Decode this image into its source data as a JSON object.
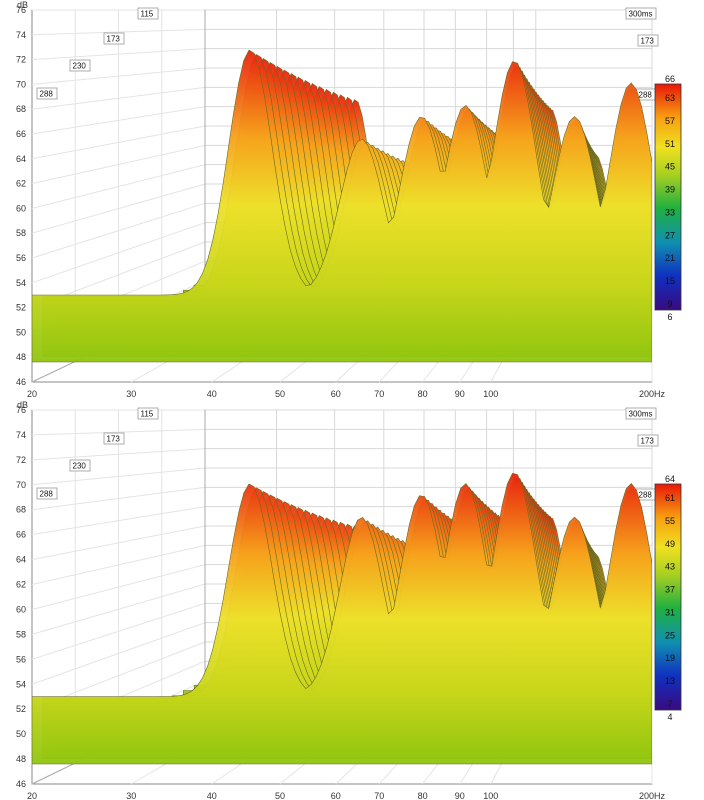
{
  "chart_data": [
    {
      "type": "waterfall",
      "y_unit": "dB",
      "x_unit": "Hz",
      "zlim_label": "300ms",
      "xlim": [
        20,
        200
      ],
      "ylim": [
        46,
        76
      ],
      "y_ticks": [
        "76",
        "74",
        "72",
        "70",
        "68",
        "66",
        "64",
        "62",
        "60",
        "58",
        "56",
        "54",
        "52",
        "50",
        "48",
        "46"
      ],
      "x_ticks": [
        "20",
        "30",
        "40",
        "50",
        "60",
        "70",
        "80",
        "90",
        "100",
        "200Hz"
      ],
      "time_labels": [
        "115",
        "173",
        "230",
        "288",
        "300ms",
        "173",
        "288"
      ],
      "colorbar": [
        "66",
        "63",
        "57",
        "51",
        "45",
        "39",
        "33",
        "27",
        "21",
        "15",
        "9",
        "6"
      ],
      "peaks": [
        {
          "freq": 45,
          "db": 74
        },
        {
          "freq": 68,
          "db": 66
        },
        {
          "freq": 85,
          "db": 68
        },
        {
          "freq": 100,
          "db": 69
        },
        {
          "freq": 120,
          "db": 73
        },
        {
          "freq": 150,
          "db": 68
        },
        {
          "freq": 185,
          "db": 71
        }
      ]
    },
    {
      "type": "waterfall",
      "y_unit": "dB",
      "x_unit": "Hz",
      "zlim_label": "300ms",
      "xlim": [
        20,
        200
      ],
      "ylim": [
        46,
        76
      ],
      "y_ticks": [
        "76",
        "74",
        "72",
        "70",
        "68",
        "66",
        "64",
        "62",
        "60",
        "58",
        "56",
        "54",
        "52",
        "50",
        "48",
        "46"
      ],
      "x_ticks": [
        "20",
        "30",
        "40",
        "50",
        "60",
        "70",
        "80",
        "90",
        "100",
        "200Hz"
      ],
      "time_labels": [
        "115",
        "173",
        "230",
        "288",
        "300ms",
        "173",
        "288"
      ],
      "colorbar": [
        "64",
        "61",
        "55",
        "49",
        "43",
        "37",
        "31",
        "25",
        "19",
        "13",
        "7",
        "4"
      ],
      "peaks": [
        {
          "freq": 45,
          "db": 71
        },
        {
          "freq": 68,
          "db": 68
        },
        {
          "freq": 85,
          "db": 70
        },
        {
          "freq": 100,
          "db": 71
        },
        {
          "freq": 120,
          "db": 72
        },
        {
          "freq": 150,
          "db": 68
        },
        {
          "freq": 185,
          "db": 71
        }
      ]
    }
  ]
}
